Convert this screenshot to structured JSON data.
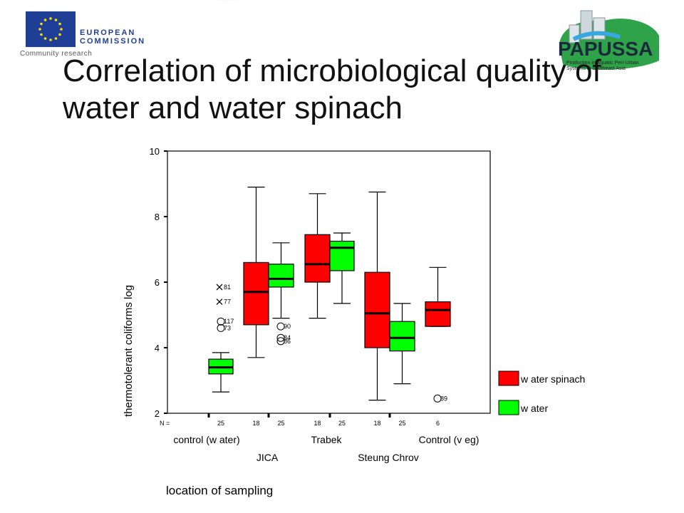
{
  "header": {
    "eu_logo": {
      "line1": "EUROPEAN",
      "line2": "COMMISSION",
      "sub": "Community research"
    },
    "partner_logo": {
      "name": "PAPUSSA",
      "subtitle_line1": "Production in Aquatic Peri-Urban",
      "subtitle_line2": "Systems in Southeast Asia"
    },
    "title": "Correlation of microbiological quality of water and water spinach"
  },
  "colors": {
    "water_spinach": "#ff0000",
    "water": "#00ff00",
    "logo_blue": "#1f3f97",
    "logo_green": "#2fa34a"
  },
  "chart_data": {
    "type": "box",
    "ylabel": "thermotolerant coliforms log",
    "xlabel": "location of sampling",
    "ylim": [
      2,
      10
    ],
    "yticks": [
      2,
      4,
      6,
      8,
      10
    ],
    "n_label": "N =",
    "categories_row1": [
      "control (w ater)",
      "Trabek",
      "Control (v eg)"
    ],
    "categories_row2": [
      "JICA",
      "Steung Chrov"
    ],
    "series": [
      {
        "name": "w ater spinach",
        "color": "#ff0000",
        "boxes": [
          {
            "group": "JICA",
            "n": "18",
            "whisker_low": 3.7,
            "q1": 4.7,
            "median": 5.7,
            "q3": 6.6,
            "whisker_high": 8.9
          },
          {
            "group": "Trabek",
            "n": "18",
            "whisker_low": 4.9,
            "q1": 6.0,
            "median": 6.55,
            "q3": 7.45,
            "whisker_high": 8.7
          },
          {
            "group": "Steung Chrov",
            "n": "18",
            "whisker_low": 2.4,
            "q1": 4.0,
            "median": 5.05,
            "q3": 6.3,
            "whisker_high": 8.75
          },
          {
            "group": "Control (v eg)",
            "n": "6",
            "whisker_low": 4.65,
            "q1": 4.65,
            "median": 5.15,
            "q3": 5.4,
            "whisker_high": 6.45
          }
        ]
      },
      {
        "name": "w ater",
        "color": "#00ff00",
        "boxes": [
          {
            "group": "control (w ater)",
            "n": "25",
            "whisker_low": 2.65,
            "q1": 3.2,
            "median": 3.4,
            "q3": 3.65,
            "whisker_high": 3.85
          },
          {
            "group": "JICA",
            "n": "25",
            "whisker_low": 4.9,
            "q1": 5.85,
            "median": 6.1,
            "q3": 6.55,
            "whisker_high": 7.2
          },
          {
            "group": "Trabek",
            "n": "25",
            "whisker_low": 5.35,
            "q1": 6.35,
            "median": 7.05,
            "q3": 7.25,
            "whisker_high": 7.5
          },
          {
            "group": "Steung Chrov",
            "n": "25",
            "whisker_low": 2.9,
            "q1": 3.9,
            "median": 4.3,
            "q3": 4.8,
            "whisker_high": 5.35
          }
        ]
      }
    ],
    "outliers": [
      {
        "box": "control (w ater)",
        "kind": "extreme",
        "value": 5.85,
        "label": "81"
      },
      {
        "box": "control (w ater)",
        "kind": "extreme",
        "value": 5.4,
        "label": "77"
      },
      {
        "box": "control (w ater)",
        "kind": "outlier",
        "value": 4.8,
        "label": "117"
      },
      {
        "box": "control (w ater)",
        "kind": "outlier",
        "value": 4.6,
        "label": "73"
      },
      {
        "box": "JICA (w ater)",
        "kind": "outlier",
        "value": 4.65,
        "label": "90"
      },
      {
        "box": "JICA (w ater)",
        "kind": "outlier",
        "value": 4.3,
        "label": "84"
      },
      {
        "box": "JICA (w ater)",
        "kind": "outlier",
        "value": 4.2,
        "label": "86"
      },
      {
        "box": "Control (v eg)",
        "kind": "outlier",
        "value": 2.45,
        "label": "89"
      }
    ],
    "legend": {
      "placement": "right",
      "entries": [
        "w ater spinach",
        "w ater"
      ]
    }
  }
}
